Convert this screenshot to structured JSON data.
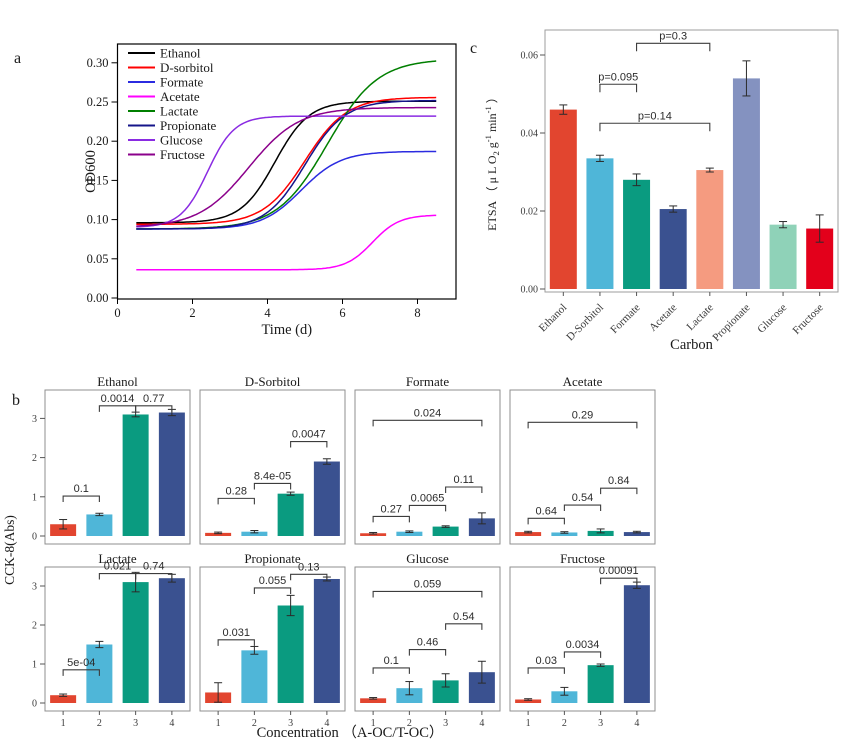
{
  "panels": {
    "a": "a",
    "b": "b",
    "c": "c"
  },
  "chart_data": [
    {
      "id": "a",
      "type": "line",
      "xlabel": "Time (d)",
      "ylabel": "OD600",
      "xlim": [
        0,
        9.0
      ],
      "ylim": [
        0,
        0.324
      ],
      "xticks": [
        0,
        2,
        4,
        6,
        8
      ],
      "yticks": [
        0,
        0.05,
        0.1,
        0.15,
        0.2,
        0.25,
        0.3
      ],
      "ytick_labels": [
        "0.00",
        "0.05",
        "0.10",
        "0.15",
        "0.20",
        "0.25",
        "0.30"
      ],
      "legend_position": "top-left-inside",
      "grid": false,
      "series": [
        {
          "name": "Ethanol",
          "color": "#000000",
          "sigmoid": {
            "y0": 0.096,
            "ymax": 0.251,
            "xmid": 4.2,
            "k": 2.2
          },
          "points": [
            [
              0.5,
              0.096
            ],
            [
              1.5,
              0.096
            ],
            [
              2.5,
              0.1
            ],
            [
              3.5,
              0.123
            ],
            [
              4.5,
              0.198
            ],
            [
              5.5,
              0.243
            ],
            [
              6.5,
              0.25
            ],
            [
              7.5,
              0.251
            ],
            [
              8.5,
              0.251
            ]
          ]
        },
        {
          "name": "D-sorbitol",
          "color": "#FF0000",
          "sigmoid": {
            "y0": 0.094,
            "ymax": 0.256,
            "xmid": 5.0,
            "k": 1.8
          },
          "points": [
            [
              0.5,
              0.094
            ],
            [
              1.5,
              0.094
            ],
            [
              2.5,
              0.096
            ],
            [
              3.5,
              0.104
            ],
            [
              4.5,
              0.141
            ],
            [
              5.5,
              0.209
            ],
            [
              6.5,
              0.246
            ],
            [
              7.5,
              0.253
            ],
            [
              8.5,
              0.256
            ]
          ]
        },
        {
          "name": "Formate",
          "color": "#2B2BE0",
          "sigmoid": {
            "y0": 0.088,
            "ymax": 0.187,
            "xmid": 4.9,
            "k": 1.9
          },
          "points": [
            [
              0.5,
              0.088
            ],
            [
              1.5,
              0.088
            ],
            [
              2.5,
              0.089
            ],
            [
              3.5,
              0.094
            ],
            [
              4.5,
              0.12
            ],
            [
              5.5,
              0.163
            ],
            [
              6.5,
              0.182
            ],
            [
              7.5,
              0.186
            ],
            [
              8.5,
              0.187
            ]
          ]
        },
        {
          "name": "Acetate",
          "color": "#FF00FF",
          "sigmoid": {
            "y0": 0.036,
            "ymax": 0.106,
            "xmid": 6.8,
            "k": 2.8
          },
          "points": [
            [
              0.5,
              0.036
            ],
            [
              1.5,
              0.036
            ],
            [
              2.5,
              0.036
            ],
            [
              3.5,
              0.036
            ],
            [
              4.5,
              0.036
            ],
            [
              5.5,
              0.037
            ],
            [
              6.5,
              0.057
            ],
            [
              7.5,
              0.097
            ],
            [
              8.5,
              0.105
            ]
          ]
        },
        {
          "name": "Lactate",
          "color": "#007F00",
          "sigmoid": {
            "y0": 0.088,
            "ymax": 0.305,
            "xmid": 5.6,
            "k": 1.5
          },
          "points": [
            [
              0.5,
              0.088
            ],
            [
              1.5,
              0.089
            ],
            [
              2.5,
              0.09
            ],
            [
              3.5,
              0.097
            ],
            [
              4.5,
              0.123
            ],
            [
              5.5,
              0.188
            ],
            [
              6.5,
              0.26
            ],
            [
              7.5,
              0.293
            ],
            [
              8.5,
              0.302
            ]
          ]
        },
        {
          "name": "Propionate",
          "color": "#15158A",
          "sigmoid": {
            "y0": 0.088,
            "ymax": 0.252,
            "xmid": 5.0,
            "k": 1.9
          },
          "points": [
            [
              0.5,
              0.088
            ],
            [
              1.5,
              0.088
            ],
            [
              2.5,
              0.089
            ],
            [
              3.5,
              0.097
            ],
            [
              4.5,
              0.134
            ],
            [
              5.5,
              0.206
            ],
            [
              6.5,
              0.243
            ],
            [
              7.5,
              0.25
            ],
            [
              8.5,
              0.252
            ]
          ]
        },
        {
          "name": "Glucose",
          "color": "#8A2BE2",
          "sigmoid": {
            "y0": 0.09,
            "ymax": 0.232,
            "xmid": 2.4,
            "k": 2.8
          },
          "points": [
            [
              0.5,
              0.091
            ],
            [
              1.5,
              0.101
            ],
            [
              2.5,
              0.171
            ],
            [
              3.5,
              0.226
            ],
            [
              4.5,
              0.232
            ],
            [
              5.5,
              0.232
            ],
            [
              6.5,
              0.232
            ],
            [
              7.5,
              0.232
            ],
            [
              8.5,
              0.232
            ]
          ]
        },
        {
          "name": "Fructose",
          "color": "#8B008B",
          "sigmoid": {
            "y0": 0.09,
            "ymax": 0.243,
            "xmid": 3.5,
            "k": 1.5
          },
          "points": [
            [
              0.5,
              0.092
            ],
            [
              1.5,
              0.097
            ],
            [
              2.5,
              0.118
            ],
            [
              3.5,
              0.167
            ],
            [
              4.5,
              0.215
            ],
            [
              5.5,
              0.236
            ],
            [
              6.5,
              0.242
            ],
            [
              7.5,
              0.243
            ],
            [
              8.5,
              0.243
            ]
          ]
        }
      ]
    },
    {
      "id": "c",
      "type": "bar",
      "xlabel": "Carbon",
      "ylabel": "ETSA （ μ L O_{2} g^{-1} min^{-1} ）",
      "categories": [
        "Ethanol",
        "D-Sorbitol",
        "Formate",
        "Acetate",
        "Lactate",
        "Propionate",
        "Glucose",
        "Fructose"
      ],
      "values": [
        0.046,
        0.0335,
        0.028,
        0.0205,
        0.0305,
        0.054,
        0.0165,
        0.0155
      ],
      "errors": [
        0.0012,
        0.0008,
        0.0015,
        0.0008,
        0.0005,
        0.0045,
        0.0008,
        0.0035
      ],
      "colors": [
        "#E2452F",
        "#4FB6D8",
        "#0A9B80",
        "#3A5190",
        "#F59B80",
        "#8492C0",
        "#8FD2B8",
        "#E3001B"
      ],
      "ylim": [
        0,
        0.0665
      ],
      "yticks": [
        0,
        0.02,
        0.04,
        0.06
      ],
      "ytick_labels": [
        "0.00",
        "0.02",
        "0.04",
        "0.06"
      ],
      "grid": false,
      "brackets": [
        {
          "i": 2,
          "j": 4,
          "y": 0.063,
          "label": "p=0.3"
        },
        {
          "i": 1,
          "j": 2,
          "y": 0.0525,
          "label": "p=0.095"
        },
        {
          "i": 1,
          "j": 4,
          "y": 0.0425,
          "label": "p=0.14"
        }
      ]
    },
    {
      "id": "b",
      "type": "bar-grid",
      "xlabel": "Concentration （A-OC/T-OC）",
      "ylabel": "CCK-8(Abs)",
      "categories": [
        "1",
        "2",
        "3",
        "4"
      ],
      "bar_colors": [
        "#E2452F",
        "#4FB6D8",
        "#0A9B80",
        "#3A5190"
      ],
      "yticks": [
        0,
        1,
        2,
        3
      ],
      "ytick_labels": [
        "0",
        "1",
        "2",
        "3"
      ],
      "grid": false,
      "subplots": [
        {
          "title": "Ethanol",
          "values": [
            0.3,
            0.55,
            3.1,
            3.15
          ],
          "errors": [
            0.12,
            0.03,
            0.06,
            0.08
          ],
          "brackets": [
            {
              "i": 0,
              "j": 1,
              "y": 1.02,
              "label": "0.1"
            },
            {
              "i": 1,
              "j": 2,
              "y": 3.32,
              "label": "0.0014"
            },
            {
              "i": 2,
              "j": 3,
              "y": 3.32,
              "label": "0.77"
            }
          ]
        },
        {
          "title": "D-Sorbitol",
          "values": [
            0.08,
            0.11,
            1.08,
            1.9
          ],
          "errors": [
            0.02,
            0.03,
            0.04,
            0.07
          ],
          "brackets": [
            {
              "i": 0,
              "j": 1,
              "y": 0.96,
              "label": "0.28"
            },
            {
              "i": 1,
              "j": 2,
              "y": 1.34,
              "label": "8.4e-05"
            },
            {
              "i": 2,
              "j": 3,
              "y": 2.41,
              "label": "0.0047"
            }
          ]
        },
        {
          "title": "Formate",
          "values": [
            0.07,
            0.11,
            0.24,
            0.45
          ],
          "errors": [
            0.02,
            0.02,
            0.02,
            0.14
          ],
          "brackets": [
            {
              "i": 0,
              "j": 1,
              "y": 0.5,
              "label": "0.27"
            },
            {
              "i": 1,
              "j": 2,
              "y": 0.78,
              "label": "0.0065"
            },
            {
              "i": 2,
              "j": 3,
              "y": 1.25,
              "label": "0.11"
            },
            {
              "i": 0,
              "j": 3,
              "y": 2.95,
              "label": "0.024"
            }
          ]
        },
        {
          "title": "Acetate",
          "values": [
            0.1,
            0.09,
            0.13,
            0.1
          ],
          "errors": [
            0.02,
            0.02,
            0.05,
            0.02
          ],
          "brackets": [
            {
              "i": 0,
              "j": 1,
              "y": 0.45,
              "label": "0.64"
            },
            {
              "i": 1,
              "j": 2,
              "y": 0.79,
              "label": "0.54"
            },
            {
              "i": 2,
              "j": 3,
              "y": 1.22,
              "label": "0.84"
            },
            {
              "i": 0,
              "j": 3,
              "y": 2.9,
              "label": "0.29"
            }
          ]
        },
        {
          "title": "Lactate",
          "values": [
            0.2,
            1.5,
            3.1,
            3.2
          ],
          "errors": [
            0.03,
            0.08,
            0.25,
            0.1
          ],
          "brackets": [
            {
              "i": 0,
              "j": 1,
              "y": 0.85,
              "label": "5e-04"
            },
            {
              "i": 1,
              "j": 2,
              "y": 3.32,
              "label": "0.021"
            },
            {
              "i": 2,
              "j": 3,
              "y": 3.32,
              "label": "0.74"
            }
          ]
        },
        {
          "title": "Propionate",
          "values": [
            0.27,
            1.35,
            2.5,
            3.18
          ],
          "errors": [
            0.25,
            0.1,
            0.26,
            0.05
          ],
          "brackets": [
            {
              "i": 0,
              "j": 1,
              "y": 1.62,
              "label": "0.031"
            },
            {
              "i": 1,
              "j": 2,
              "y": 2.95,
              "label": "0.055"
            },
            {
              "i": 2,
              "j": 3,
              "y": 3.3,
              "label": "0.13"
            }
          ]
        },
        {
          "title": "Glucose",
          "values": [
            0.12,
            0.38,
            0.58,
            0.79
          ],
          "errors": [
            0.02,
            0.17,
            0.17,
            0.28
          ],
          "brackets": [
            {
              "i": 0,
              "j": 1,
              "y": 0.9,
              "label": "0.1"
            },
            {
              "i": 1,
              "j": 2,
              "y": 1.37,
              "label": "0.46"
            },
            {
              "i": 2,
              "j": 3,
              "y": 2.03,
              "label": "0.54"
            },
            {
              "i": 0,
              "j": 3,
              "y": 2.86,
              "label": "0.059"
            }
          ]
        },
        {
          "title": "Fructose",
          "values": [
            0.09,
            0.3,
            0.97,
            3.02
          ],
          "errors": [
            0.02,
            0.1,
            0.03,
            0.08
          ],
          "brackets": [
            {
              "i": 0,
              "j": 1,
              "y": 0.9,
              "label": "0.03"
            },
            {
              "i": 1,
              "j": 2,
              "y": 1.31,
              "label": "0.0034"
            },
            {
              "i": 2,
              "j": 3,
              "y": 3.2,
              "label": "0.00091"
            }
          ]
        }
      ]
    }
  ]
}
